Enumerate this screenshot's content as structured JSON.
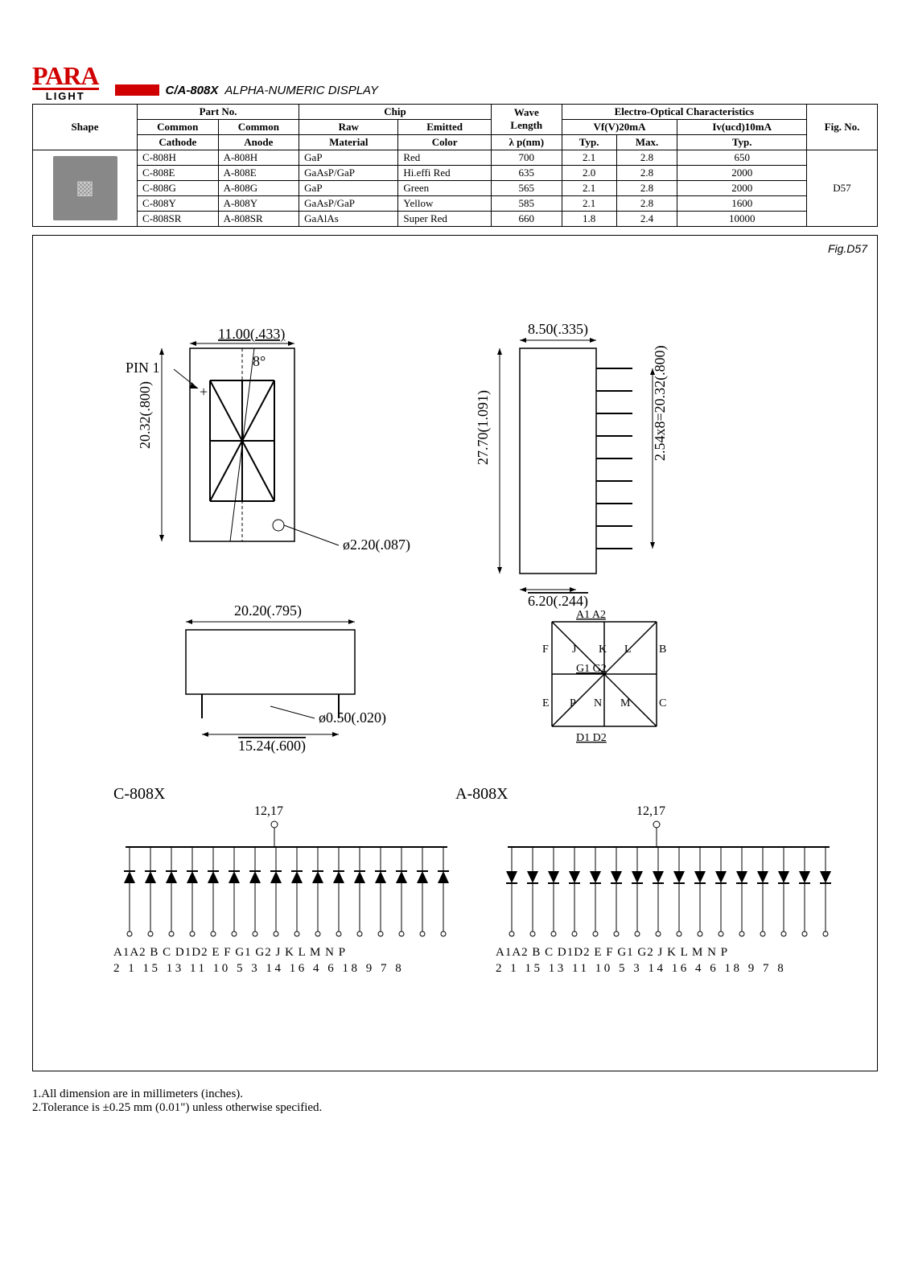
{
  "logo": {
    "top": "PARA",
    "bottom": "LIGHT"
  },
  "title": {
    "code": "C/A-808X",
    "desc": "ALPHA-NUMERIC DISPLAY"
  },
  "table": {
    "headers": {
      "shape": "Shape",
      "partno": "Part No.",
      "common_cathode": "Common\nCathode",
      "common_anode": "Common\nAnode",
      "chip": "Chip",
      "raw_material": "Raw\nMaterial",
      "emitted_color": "Emitted\nColor",
      "wavelength": "Wave\nLength\nλ p(nm)",
      "electro": "Electro-Optical Characteristics",
      "vf": "Vf(V)20mA",
      "typ": "Typ.",
      "max": "Max.",
      "iv": "Iv(ucd)10mA",
      "figno": "Fig. No."
    },
    "rows": [
      {
        "cc": "C-808H",
        "ca": "A-808H",
        "mat": "GaP",
        "color": "Red",
        "wl": "700",
        "vft": "2.1",
        "vfm": "2.8",
        "iv": "650"
      },
      {
        "cc": "C-808E",
        "ca": "A-808E",
        "mat": "GaAsP/GaP",
        "color": "Hi.effi Red",
        "wl": "635",
        "vft": "2.0",
        "vfm": "2.8",
        "iv": "2000"
      },
      {
        "cc": "C-808G",
        "ca": "A-808G",
        "mat": "GaP",
        "color": "Green",
        "wl": "565",
        "vft": "2.1",
        "vfm": "2.8",
        "iv": "2000"
      },
      {
        "cc": "C-808Y",
        "ca": "A-808Y",
        "mat": "GaAsP/GaP",
        "color": "Yellow",
        "wl": "585",
        "vft": "2.1",
        "vfm": "2.8",
        "iv": "1600"
      },
      {
        "cc": "C-808SR",
        "ca": "A-808SR",
        "mat": "GaAlAs",
        "color": "Super Red",
        "wl": "660",
        "vft": "1.8",
        "vfm": "2.4",
        "iv": "10000"
      }
    ],
    "fig_ref": "D57"
  },
  "figure": {
    "label": "Fig.D57",
    "dims": {
      "top_width": "11.00(.433)",
      "angle": "8°",
      "pin1": "PIN 1",
      "body_height": "20.32(.800)",
      "hole_dia": "ø2.20(.087)",
      "side_width": "20.20(.795)",
      "pin_dia": "ø0.50(.020)",
      "pin_pitch_total": "15.24(.600)",
      "pkg_width": "8.50(.335)",
      "pkg_height": "27.70(1.091)",
      "pin_rows": "2.54x8=20.32(.800)",
      "pkg_depth": "6.20(.244)"
    },
    "segments_top": "A1 A2",
    "segments_mid1": "F J K L B",
    "segments_mid2": "G1 G2",
    "segments_mid3": "E P N M C",
    "segments_bot": "D1 D2",
    "variant_left": "C-808X",
    "variant_right": "A-808X",
    "shared_pins": "12,17",
    "pin_labels_line1": "A1A2 B C D1D2 E F G1 G2 J K L M N P",
    "pin_labels_line2": "2 1 15 13 11 10 5 3 14 16 4 6 18 9 7 8"
  },
  "footnotes": {
    "n1": "1.All dimension are in millimeters (inches).",
    "n2": "2.Tolerance is ±0.25 mm (0.01\") unless otherwise specified."
  }
}
